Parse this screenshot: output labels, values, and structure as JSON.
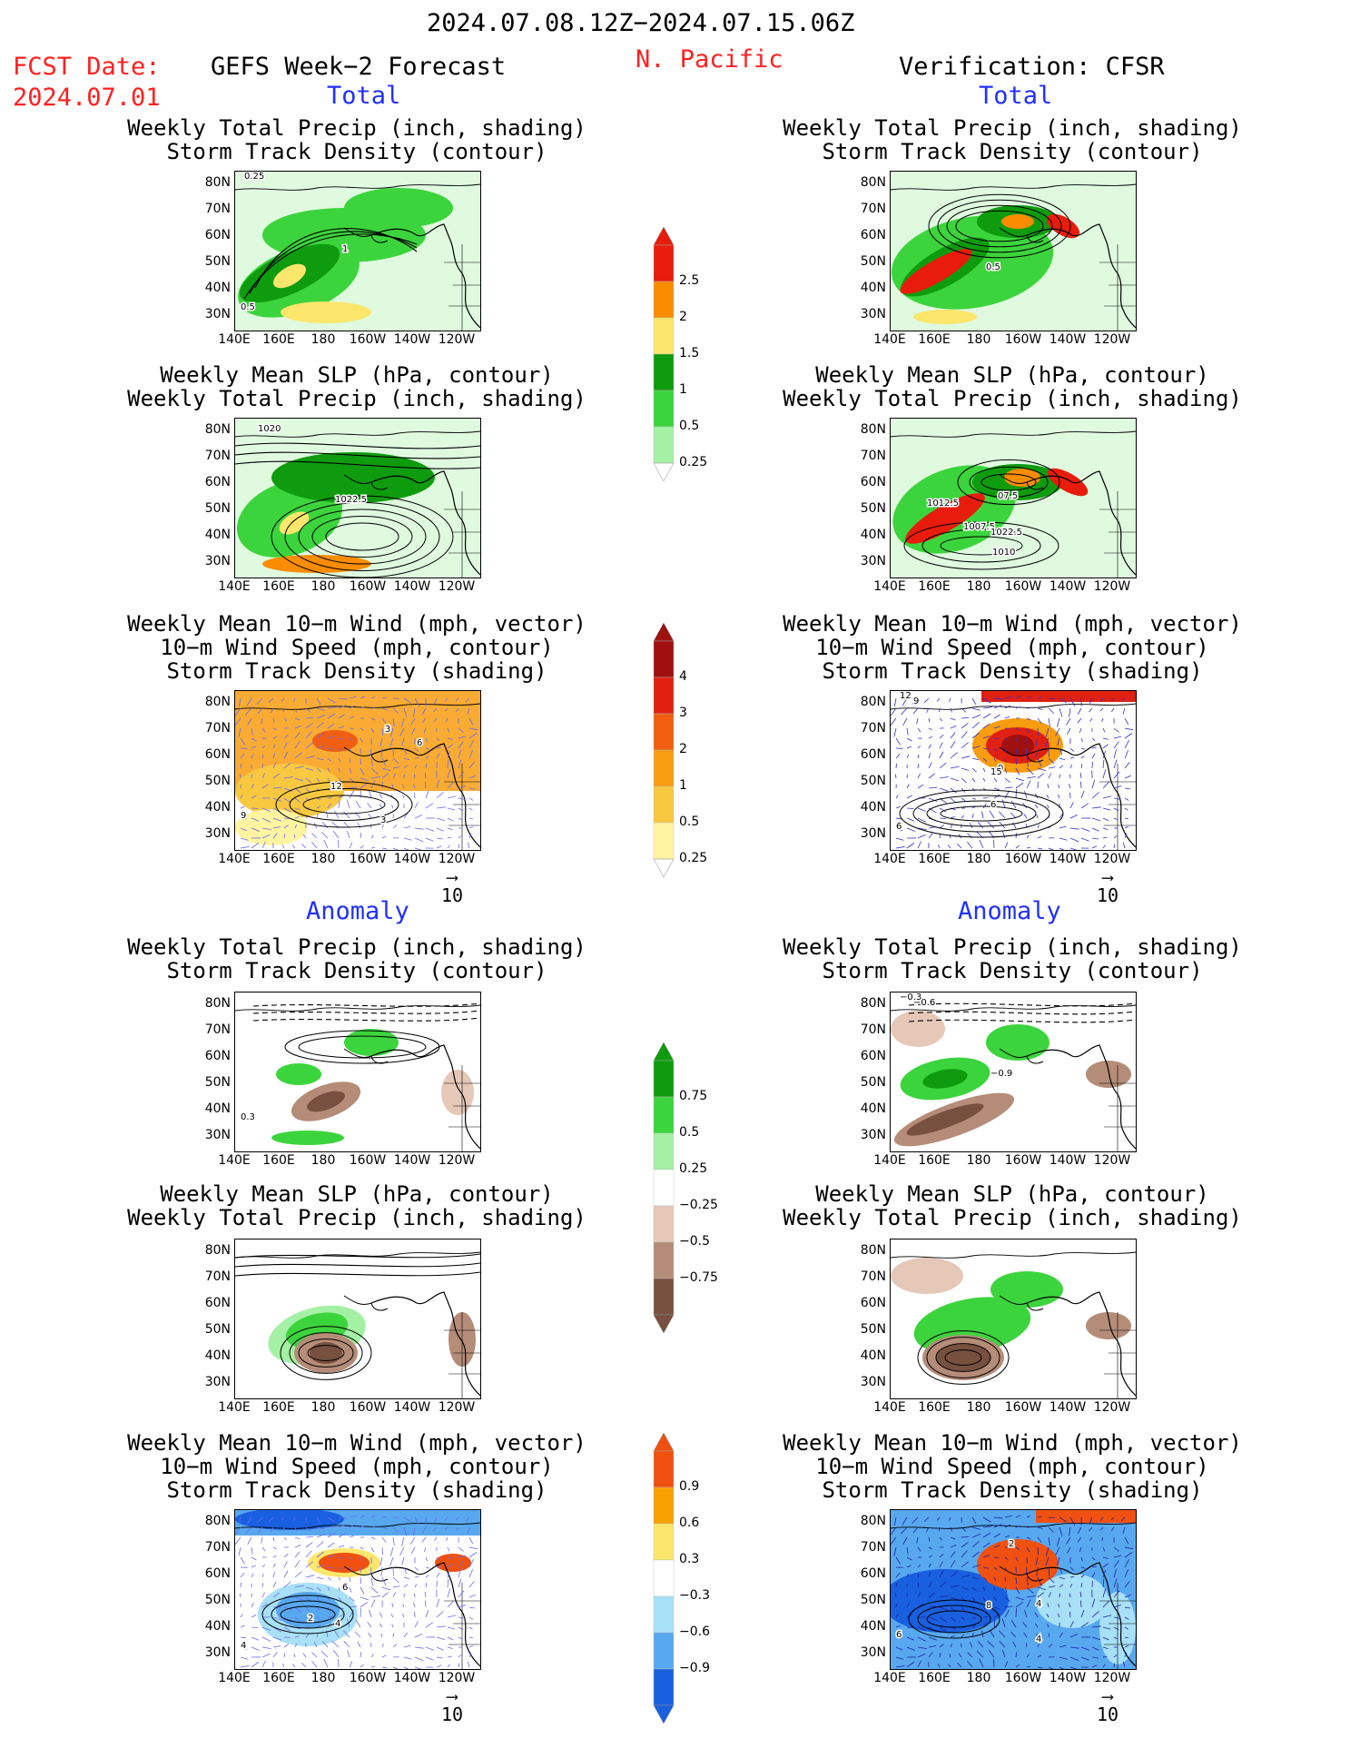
{
  "header": {
    "date_range": "2024.07.08.12Z−2024.07.15.06Z",
    "fcst_label": "FCST Date:",
    "fcst_date": "2024.07.01",
    "left_title": "GEFS Week−2 Forecast",
    "region": "N. Pacific",
    "right_title": "Verification: CFSR"
  },
  "section_labels": {
    "total": "Total",
    "anomaly": "Anomaly"
  },
  "panel_titles": {
    "precip_storm": [
      "Weekly Total Precip (inch, shading)",
      "Storm Track Density (contour)"
    ],
    "slp_precip": [
      "Weekly Mean SLP (hPa, contour)",
      "Weekly Total Precip (inch, shading)"
    ],
    "wind_storm": [
      "Weekly Mean 10−m Wind (mph, vector)",
      "10−m Wind Speed (mph, contour)",
      "Storm Track Density (shading)"
    ]
  },
  "axes": {
    "lat_ticks": [
      "80N",
      "70N",
      "60N",
      "50N",
      "40N",
      "30N"
    ],
    "lon_ticks": [
      "140E",
      "160E",
      "180",
      "160W",
      "140W",
      "120W"
    ]
  },
  "vector_reference": "10",
  "colorbars": {
    "total_precip": {
      "labels": [
        "2.5",
        "2",
        "1.5",
        "1",
        "0.5",
        "0.25"
      ],
      "colors": [
        "#e81c0c",
        "#fa8c00",
        "#fde66c",
        "#0e9b0e",
        "#3cd43c",
        "#a4f0a4"
      ]
    },
    "total_storm": {
      "labels": [
        "4",
        "3",
        "2",
        "1",
        "0.5",
        "0.25"
      ],
      "colors": [
        "#a01010",
        "#e02010",
        "#f06010",
        "#f89c10",
        "#f8c840",
        "#fff4a0"
      ]
    },
    "anom_precip": {
      "labels": [
        "0.75",
        "0.5",
        "0.25",
        "−0.25",
        "−0.5",
        "−0.75"
      ],
      "colors": [
        "#0e9b0e",
        "#3cd43c",
        "#a4f0a4",
        "#ffffff",
        "#e6c8b8",
        "#b48c78",
        "#785040"
      ]
    },
    "anom_storm": {
      "labels": [
        "0.9",
        "0.6",
        "0.3",
        "−0.3",
        "−0.6",
        "−0.9"
      ],
      "colors": [
        "#f05010",
        "#f8a000",
        "#fde66c",
        "#ffffff",
        "#a8e0f8",
        "#58a8f0",
        "#1860e0"
      ]
    }
  },
  "contour_labels": {
    "L_total_precip": [
      "1",
      "0.5",
      "0.25"
    ],
    "R_total_precip": [
      "0.5"
    ],
    "L_total_slp": [
      "1022.5",
      "1020"
    ],
    "R_total_slp": [
      "1012.5",
      "1010",
      "1007.5",
      "1022.5",
      "07.5"
    ],
    "L_total_wind": [
      "3",
      "6",
      "3",
      "9",
      "12"
    ],
    "R_total_wind": [
      "6",
      "9",
      "6",
      "12",
      "15",
      "9"
    ],
    "L_anom_precip": [
      "0.3"
    ],
    "R_anom_precip": [
      "−0.3",
      "−0.9",
      "−0.6"
    ],
    "L_anom_wind": [
      "2",
      "4",
      "6",
      "4"
    ],
    "R_anom_wind": [
      "4",
      "6",
      "8",
      "2",
      "4"
    ]
  }
}
